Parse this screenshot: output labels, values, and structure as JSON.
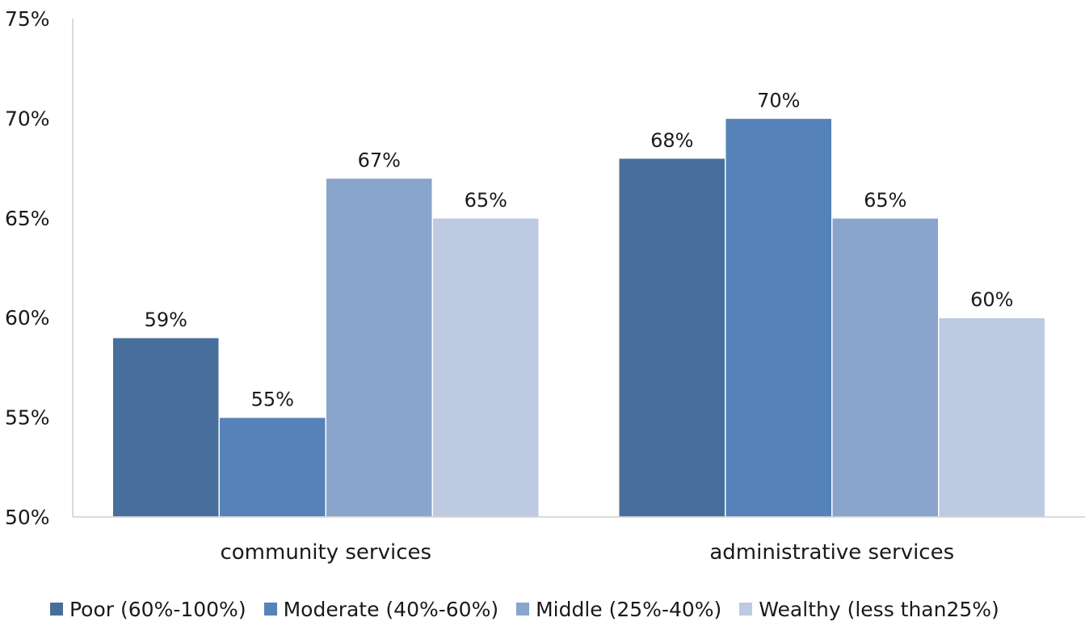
{
  "chart_data": {
    "type": "bar",
    "categories": [
      "community services",
      "administrative services"
    ],
    "series": [
      {
        "name": "Poor (60%-100%)",
        "color": "#486F9B",
        "values": [
          59,
          68
        ],
        "labels": [
          "59%",
          "68%"
        ]
      },
      {
        "name": "Moderate (40%-60%)",
        "color": "#5582B8",
        "values": [
          55,
          70
        ],
        "labels": [
          "55%",
          "70%"
        ]
      },
      {
        "name": "Middle (25%-40%)",
        "color": "#89A5CC",
        "values": [
          67,
          65
        ],
        "labels": [
          "67%",
          "65%"
        ]
      },
      {
        "name": "Wealthy (less than25%)",
        "color": "#BDCAE2",
        "values": [
          65,
          60
        ],
        "labels": [
          "65%",
          "60%"
        ]
      }
    ],
    "ylim": [
      50,
      75
    ],
    "yticks": [
      50,
      55,
      60,
      65,
      70,
      75
    ],
    "ytick_labels": [
      "50%",
      "55%",
      "60%",
      "65%",
      "70%",
      "75%"
    ],
    "grid": false,
    "legend_position": "bottom"
  }
}
